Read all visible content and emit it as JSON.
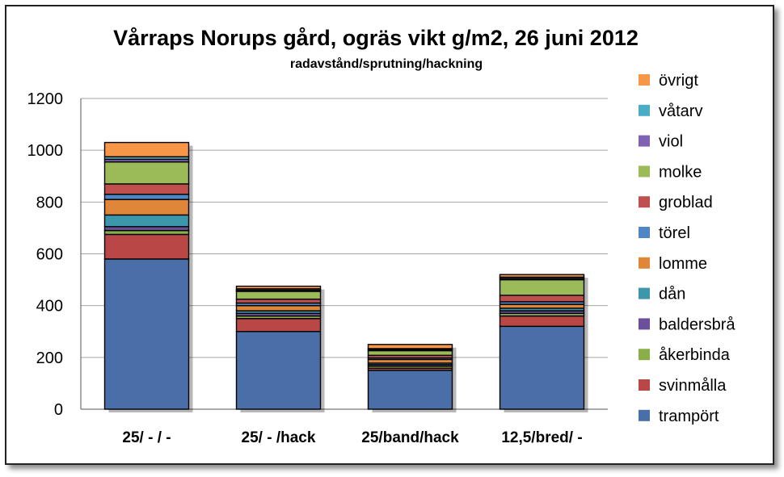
{
  "chart_data": {
    "type": "bar",
    "stacked": true,
    "title": "Vårraps Norups gård, ogräs vikt g/m2, 26 juni 2012",
    "subtitle": "radavstånd/sprutning/hackning",
    "categories": [
      "25/ - / -",
      "25/ - /hack",
      "25/band/hack",
      "12,5/bred/ -"
    ],
    "ylim": [
      0,
      1200
    ],
    "yticks": [
      0,
      200,
      400,
      600,
      800,
      1000,
      1200
    ],
    "grid": true,
    "legend_position": "right",
    "series": [
      {
        "name": "trampört",
        "color": "#4a6fa8",
        "values": [
          580,
          300,
          150,
          320
        ]
      },
      {
        "name": "svinmålla",
        "color": "#b84746",
        "values": [
          95,
          50,
          8,
          40
        ]
      },
      {
        "name": "åkerbinda",
        "color": "#8aae4a",
        "values": [
          15,
          10,
          8,
          10
        ]
      },
      {
        "name": "baldersbrå",
        "color": "#6b4f9a",
        "values": [
          15,
          10,
          6,
          10
        ]
      },
      {
        "name": "dån",
        "color": "#3c97ad",
        "values": [
          45,
          10,
          6,
          10
        ]
      },
      {
        "name": "lomme",
        "color": "#e08638",
        "values": [
          60,
          20,
          14,
          15
        ]
      },
      {
        "name": "törel",
        "color": "#4f86c6",
        "values": [
          20,
          10,
          6,
          10
        ]
      },
      {
        "name": "groblad",
        "color": "#c0504d",
        "values": [
          40,
          15,
          10,
          25
        ]
      },
      {
        "name": "molke",
        "color": "#9bbb59",
        "values": [
          85,
          30,
          18,
          60
        ]
      },
      {
        "name": "viol",
        "color": "#7f63b2",
        "values": [
          10,
          5,
          4,
          5
        ]
      },
      {
        "name": "våtarv",
        "color": "#4bacc6",
        "values": [
          10,
          5,
          4,
          5
        ]
      },
      {
        "name": "övrigt",
        "color": "#f79646",
        "values": [
          55,
          10,
          16,
          10
        ]
      }
    ]
  }
}
